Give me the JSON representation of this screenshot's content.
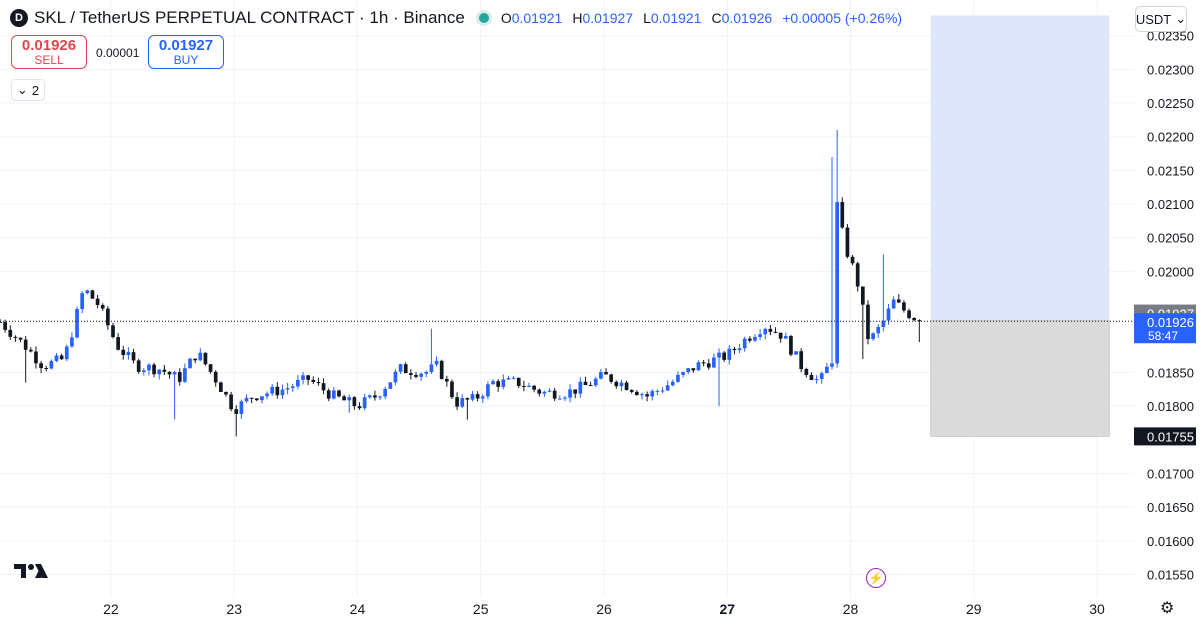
{
  "header": {
    "logo_text": "D",
    "title": "SKL / TetherUS PERPETUAL CONTRACT · 1h · Binance",
    "ohlc": {
      "o_label": "O",
      "o": "0.01921",
      "h_label": "H",
      "h": "0.01927",
      "l_label": "L",
      "l": "0.01921",
      "c_label": "C",
      "c": "0.01926",
      "change": "+0.00005 (+0.26%)"
    }
  },
  "trade": {
    "sell_price": "0.01926",
    "sell_label": "SELL",
    "spread": "0.00001",
    "buy_price": "0.01927",
    "buy_label": "BUY"
  },
  "indicators_count": "2",
  "currency": "USDT",
  "colors": {
    "up": "#2962ff",
    "down": "#131722",
    "profit_zone": "#dde6fb",
    "loss_zone": "#dadada",
    "sell": "#e0464d",
    "buy": "#2962ff"
  },
  "chart_data": {
    "type": "candlestick",
    "x_tick_labels": [
      "22",
      "23",
      "24",
      "25",
      "26",
      "27",
      "28",
      "29",
      "30"
    ],
    "y_tick_labels": [
      "0.02350",
      "0.02300",
      "0.02250",
      "0.02200",
      "0.02150",
      "0.02100",
      "0.02050",
      "0.02000",
      "0.01850",
      "0.01800",
      "0.01700",
      "0.01650",
      "0.01600",
      "0.01550"
    ],
    "ylim": [
      0.01518,
      0.02403
    ],
    "xlim": [
      21.1,
      30.3
    ],
    "last_price": 0.01926,
    "price_labels": [
      {
        "text": "0.01927",
        "value": 0.01927,
        "color": "#787b86"
      },
      {
        "text": "0.01926",
        "sub": "58:47",
        "value": 0.01926,
        "color": "#2962ff"
      },
      {
        "text": "0.01755",
        "value": 0.01755,
        "color": "#131722"
      }
    ],
    "position": {
      "entry": 0.01927,
      "target": 0.0238,
      "stop": 0.01755,
      "start_day": 28.65,
      "end_day": 30.1
    },
    "waypoints": [
      [
        21.1,
        0.01925
      ],
      [
        21.3,
        0.0189
      ],
      [
        21.45,
        0.0186
      ],
      [
        21.62,
        0.0187
      ],
      [
        21.7,
        0.0192
      ],
      [
        21.78,
        0.01975
      ],
      [
        21.9,
        0.0195
      ],
      [
        22.05,
        0.0189
      ],
      [
        22.2,
        0.0186
      ],
      [
        22.4,
        0.01855
      ],
      [
        22.55,
        0.0184
      ],
      [
        22.7,
        0.0188
      ],
      [
        22.85,
        0.0184
      ],
      [
        23.0,
        0.01795
      ],
      [
        23.15,
        0.01815
      ],
      [
        23.4,
        0.01825
      ],
      [
        23.6,
        0.0184
      ],
      [
        23.8,
        0.01815
      ],
      [
        24.0,
        0.018
      ],
      [
        24.15,
        0.01815
      ],
      [
        24.35,
        0.01855
      ],
      [
        24.55,
        0.0185
      ],
      [
        24.65,
        0.0186
      ],
      [
        24.8,
        0.01805
      ],
      [
        24.95,
        0.0181
      ],
      [
        25.1,
        0.01835
      ],
      [
        25.3,
        0.01835
      ],
      [
        25.5,
        0.0182
      ],
      [
        25.7,
        0.0182
      ],
      [
        25.85,
        0.0183
      ],
      [
        26.0,
        0.01845
      ],
      [
        26.2,
        0.0183
      ],
      [
        26.35,
        0.01815
      ],
      [
        26.55,
        0.01835
      ],
      [
        26.75,
        0.0186
      ],
      [
        27.0,
        0.01875
      ],
      [
        27.15,
        0.019
      ],
      [
        27.3,
        0.0192
      ],
      [
        27.45,
        0.01905
      ],
      [
        27.6,
        0.0186
      ],
      [
        27.75,
        0.01835
      ],
      [
        27.85,
        0.0187
      ],
      [
        27.88,
        0.0211
      ],
      [
        27.95,
        0.0204
      ],
      [
        28.05,
        0.0199
      ],
      [
        28.15,
        0.01895
      ],
      [
        28.25,
        0.0192
      ],
      [
        28.35,
        0.01955
      ],
      [
        28.45,
        0.0194
      ],
      [
        28.57,
        0.01926
      ]
    ],
    "spikes": [
      {
        "day": 21.3,
        "low": 0.01835
      },
      {
        "day": 22.5,
        "low": 0.0178
      },
      {
        "day": 23.0,
        "low": 0.01755
      },
      {
        "day": 23.95,
        "low": 0.0179
      },
      {
        "day": 24.62,
        "high": 0.01915
      },
      {
        "day": 24.88,
        "low": 0.0178
      },
      {
        "day": 26.95,
        "low": 0.018
      },
      {
        "day": 27.85,
        "high": 0.0217
      },
      {
        "day": 27.89,
        "high": 0.0221
      },
      {
        "day": 28.25,
        "high": 0.02025
      },
      {
        "day": 28.1,
        "low": 0.0187
      },
      {
        "day": 28.55,
        "low": 0.01895
      }
    ]
  }
}
